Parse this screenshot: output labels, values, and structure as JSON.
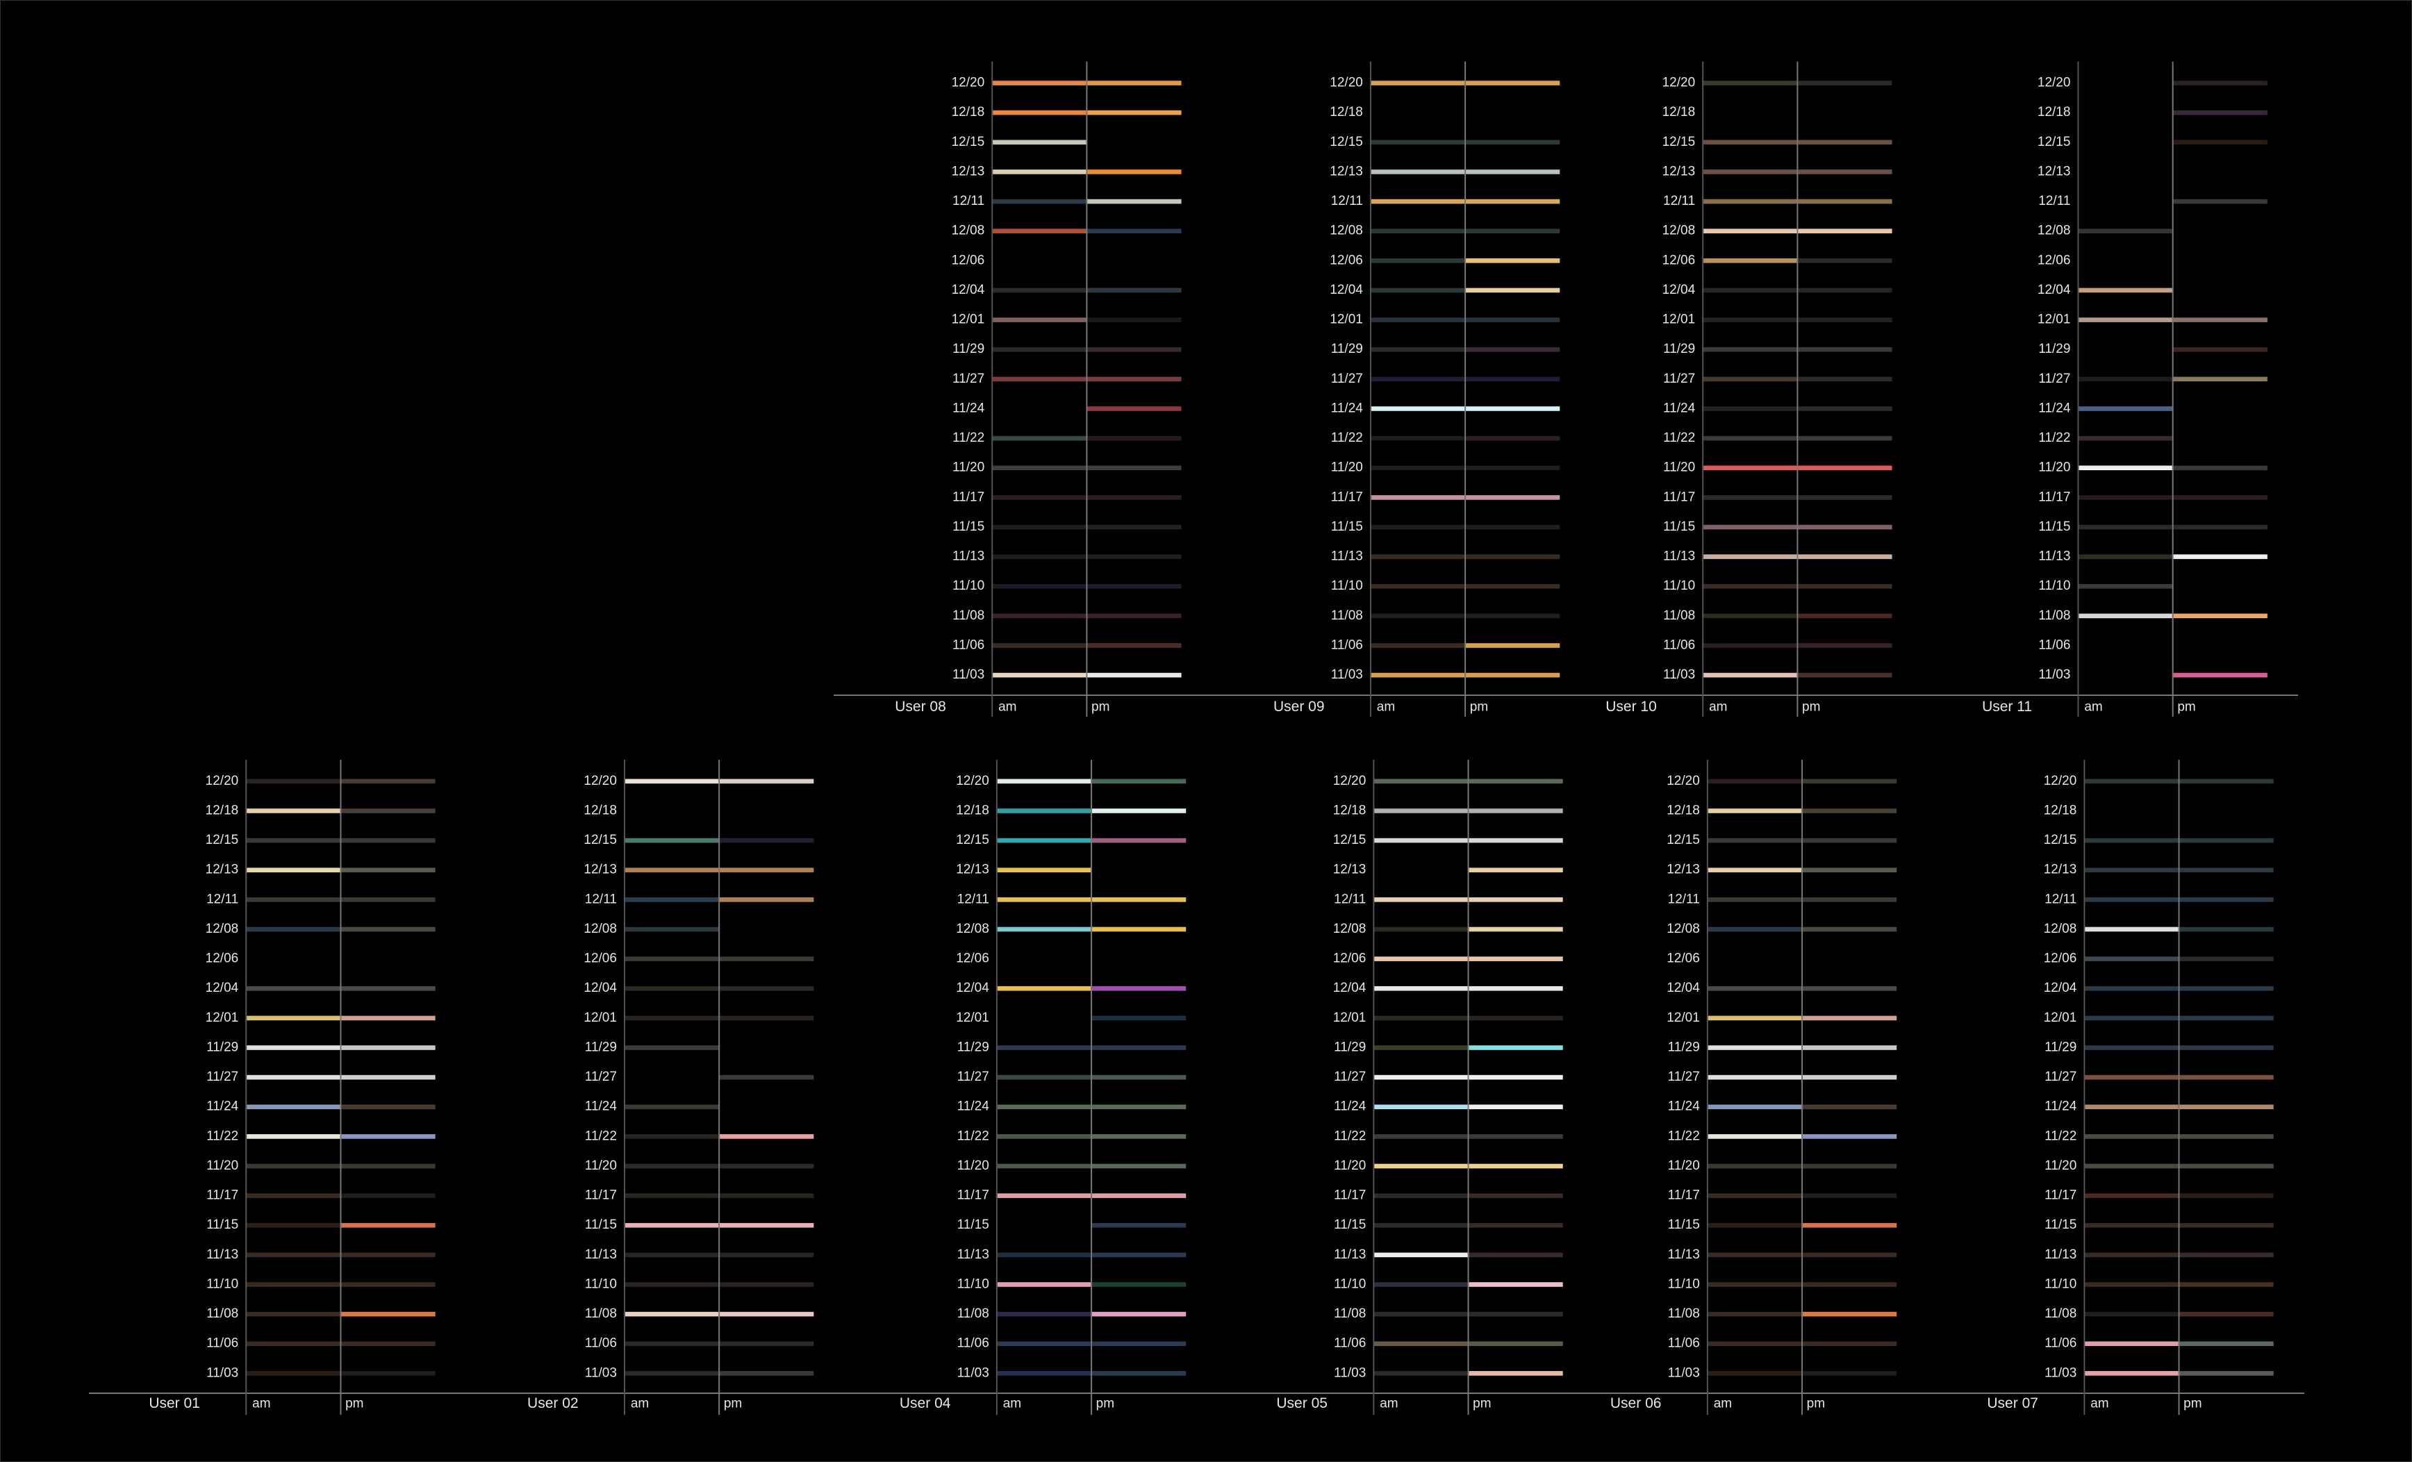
{
  "dates": [
    "12/20",
    "12/18",
    "12/15",
    "12/13",
    "12/11",
    "12/08",
    "12/06",
    "12/04",
    "12/01",
    "11/29",
    "11/27",
    "11/24",
    "11/22",
    "11/20",
    "11/17",
    "11/15",
    "11/13",
    "11/10",
    "11/08",
    "11/06",
    "11/03"
  ],
  "periods": [
    "am",
    "pm"
  ],
  "panels": [
    {
      "user": "User 08",
      "am": [
        "#e8884a",
        "#f0843a",
        "#c8c8b8",
        "#d8d0b0",
        "#2a3a48",
        "#b0503a",
        null,
        "#2a2a28",
        "#806060",
        "#2a2a2a",
        "#7a3a3a",
        null,
        "#3a4a40",
        "#3a4038",
        "#2a1e24",
        "#1e1e1e",
        "#1e1a22",
        "#1e1a24",
        "#3a2228",
        "#3a2a24",
        "#e8d8c0"
      ],
      "pm": [
        "#e8964a",
        "#f0a040",
        null,
        "#f08a30",
        "#c8c8b8",
        "#2a3a50",
        null,
        "#2a3a48",
        "#1a1a1e",
        "#3a2a30",
        "#7a3a40",
        "#8a3a40",
        "#2a1a1a",
        "#3a4038",
        "#2a1e24",
        "#222222",
        "#1e1e22",
        "#1e1e28",
        "#3a2228",
        "#4a2e24",
        "#e8e8e8"
      ]
    },
    {
      "user": "User 09",
      "am": [
        "#d8a050",
        null,
        "#2a3a3a",
        "#b8c0c0",
        "#d8a858",
        "#2a3a3a",
        "#2a3a38",
        "#2a3a38",
        "#2a3040",
        "#2a2a30",
        "#1e2038",
        "#d8f0f0",
        "#1e1a1e",
        "#1e1e1e",
        "#c890a0",
        "#1e1e1e",
        "#3a2a22",
        "#3a2a22",
        "#1e1e1e",
        "#3a2a20",
        "#d8a048"
      ],
      "pm": [
        "#d8a050",
        null,
        "#2a3a3a",
        "#b8c0c0",
        "#d8a858",
        "#2a3a3a",
        "#e8c078",
        "#e8d098",
        "#2a3040",
        "#3a2a38",
        "#1e2038",
        "#d8f0f0",
        "#2e2020",
        "#1e1e1e",
        "#c890a0",
        "#1e1e1e",
        "#3a2a22",
        "#3a2a22",
        "#1e1e1e",
        "#d8a048",
        "#d8a048"
      ]
    },
    {
      "user": "User 10",
      "am": [
        "#3a3a30",
        null,
        "#6a5040",
        "#6a5048",
        "#8a7050",
        "#e8c8b0",
        "#b8905a",
        "#2a2420",
        "#222222",
        "#3a3a38",
        "#4a3a2a",
        "#222222",
        "#3a3a34",
        "#e05858",
        "#2a2a2a",
        "#806070",
        "#c8b0a0",
        "#3a2a28",
        "#2a2a20",
        "#2a1e1e",
        "#e8c0b8"
      ],
      "pm": [
        "#2a2a2a",
        null,
        "#6a5040",
        "#6a5048",
        "#8a7050",
        "#e8c8b0",
        "#2a2a28",
        "#2a2420",
        "#222222",
        "#3a3a38",
        "#2a2a2a",
        "#2a2a2a",
        "#3a3a34",
        "#e05858",
        "#2a2a2a",
        "#806070",
        "#c8b0a0",
        "#3a2a28",
        "#4a2a22",
        "#3a2222",
        "#4a3028"
      ]
    },
    {
      "user": "User 11",
      "am": [
        null,
        null,
        null,
        null,
        null,
        "#3a3430",
        null,
        "#c8a080",
        "#b89a88",
        null,
        "#1e1e1a",
        "#4a6088",
        "#3a2a30",
        "#f0f0f0",
        "#2a1a1a",
        "#2a2a2a",
        "#2a3020",
        "#3a3a3a",
        "#d8d8d8",
        null,
        null
      ],
      "pm": [
        "#2a2028",
        "#3a2838",
        "#2a1a16",
        null,
        "#3a3a34",
        null,
        null,
        null,
        "#8a7068",
        "#3a2424",
        "#8a7a60",
        null,
        null,
        "#3a3a34",
        "#2a1e1e",
        "#2a2a2a",
        "#f0f0f0",
        null,
        "#e8a868",
        null,
        "#d86090"
      ]
    },
    {
      "user": "User 01",
      "am": [
        "#2a2420",
        "#e8d0a8",
        "#3a3a34",
        "#e8d8a8",
        "#3a3a30",
        "#2a3a48",
        null,
        "#4a4a44",
        "#d8c070",
        "#e0e0e0",
        "#e0e0d8",
        "#8898b8",
        "#e8e8d8",
        "#3a3a30",
        "#3a2a20",
        "#2a1e18",
        "#3a2a22",
        "#3a2a22",
        "#3a2a22",
        "#3a2a22",
        "#2a1e18"
      ],
      "pm": [
        "#4a3a30",
        "#4a3e38",
        "#3a3a34",
        "#5a5a50",
        "#3a3a30",
        "#4a4a40",
        null,
        "#4a4a44",
        "#d0a090",
        "#c8c8c8",
        "#d0d0c8",
        "#4a3a30",
        "#8898c0",
        "#3a3a30",
        "#1e1e1e",
        "#d87048",
        "#3a2a22",
        "#3a2a22",
        "#e07840",
        "#3a2a22",
        "#1e1e1e"
      ]
    },
    {
      "user": "User  02",
      "am": [
        "#e8e0d0",
        null,
        "#4a7a70",
        "#b08050",
        "#2a4050",
        "#2a3a40",
        "#3a3a34",
        "#2a2a20",
        "#2a2420",
        "#3a3a38",
        null,
        "#3a3a34",
        "#2a2420",
        "#2a2a2a",
        "#2a2420",
        "#e8b0b0",
        "#2a2420",
        "#2a2420",
        "#e8d0c0",
        "#2a2a2a",
        "#2a2a28"
      ],
      "pm": [
        "#d8d0c0",
        null,
        "#1e2030",
        "#b08050",
        "#b08058",
        null,
        "#3a3a34",
        "#2a2a28",
        "#2a2420",
        null,
        "#3a3a38",
        null,
        "#e8a0a0",
        "#2a2a2a",
        "#2a2420",
        "#e8b0b0",
        "#2a2420",
        "#2a2420",
        "#e8c8c0",
        "#2a2a2a",
        "#3a3a34"
      ]
    },
    {
      "user": "User 04",
      "am": [
        "#e0f0e8",
        "#30a0a8",
        "#30a8b0",
        "#e8c050",
        "#e8c050",
        "#80c8d0",
        null,
        "#e8c050",
        null,
        "#2a3a50",
        "#3a4a40",
        "#5a6a58",
        "#4a5a48",
        "#4a5a48",
        "#e0a0a8",
        null,
        "#1e3040",
        "#e0a0b0",
        "#2a2a50",
        "#2a3a50",
        "#2a3050"
      ],
      "pm": [
        "#4a6a58",
        "#e0f0f0",
        "#a06080",
        null,
        "#e8c050",
        "#e8c050",
        null,
        "#a050b0",
        "#1e3040",
        "#2a3a50",
        "#4a5a50",
        "#5a6a58",
        "#5a6a58",
        "#5a6a58",
        "#e0a0a8",
        "#2a3a50",
        "#2a3a50",
        "#1e4030",
        "#e0a0c0",
        "#2a3a50",
        "#2a3a50"
      ]
    },
    {
      "user": "User 05",
      "am": [
        "#5a6a58",
        "#b0b0b0",
        "#d8d8d8",
        null,
        "#e8d0b0",
        "#2a2a20",
        "#e8c8a8",
        "#e8e8e8",
        "#2a2a20",
        "#3a4020",
        "#f0f0f0",
        "#b0e0f0",
        "#3a3a34",
        "#f0d090",
        "#2a2a28",
        "#2a2a28",
        "#e8f0f0",
        "#2a3040",
        "#2a2a28",
        "#6a5a48",
        "#2a2a28"
      ],
      "pm": [
        "#5a6a58",
        "#b0b0b0",
        "#d8d8d8",
        "#e8d0a0",
        "#e8d0b0",
        "#e8d0a8",
        "#e8c8a8",
        "#e8e8e8",
        "#2a2420",
        "#80e0e0",
        "#f0f0f0",
        "#f0f0f0",
        "#3a3a34",
        "#f0d090",
        "#3a2a28",
        "#3a2a28",
        "#3a2a28",
        "#e8c0c8",
        "#2a2a28",
        "#5a5a48",
        "#e8b8a8"
      ]
    },
    {
      "user": "User 06",
      "am": [
        "#2a2020",
        "#e8d0a0",
        "#3a3a34",
        "#e8d0a8",
        "#3a3a30",
        "#2a3a48",
        null,
        "#4a4a44",
        "#d8c070",
        "#e0e0e0",
        "#e0e0d8",
        "#8898b8",
        "#e8e8d8",
        "#3a3a30",
        "#3a2a20",
        "#2a1e18",
        "#3a2a22",
        "#3a2a22",
        "#3a2a22",
        "#3a2a22",
        "#2a1e18"
      ],
      "pm": [
        "#3a3a30",
        "#4a4034",
        "#3a3a34",
        "#5a5a4a",
        "#3a3a30",
        "#4a4a40",
        null,
        "#4a4a44",
        "#d0a090",
        "#c8c8c8",
        "#d0d0c8",
        "#4a3a30",
        "#8898c0",
        "#3a3a30",
        "#1e1e1e",
        "#d87048",
        "#3a2a22",
        "#3a2a22",
        "#e07840",
        "#3a2a22",
        "#1e1e1e"
      ]
    },
    {
      "user": "User 07",
      "am": [
        "#2a3a3a",
        null,
        "#2a3a40",
        "#2a3a40",
        "#2a3a48",
        "#e0e0e0",
        "#3a4a50",
        "#2a3a48",
        "#2a3a48",
        "#2a3a48",
        "#7a5040",
        "#b08a70",
        "#4a4a40",
        "#4a4a40",
        "#4a2a24",
        "#3a2a24",
        "#3a2a24",
        "#3a2a20",
        "#1e1e1a",
        "#e0a0a8",
        "#e8a0a8"
      ],
      "pm": [
        "#2a3a3a",
        null,
        "#2a3a40",
        "#2a3a40",
        "#2a3a48",
        "#2a3a40",
        "#2a2a30",
        "#2a3a48",
        "#2a3a48",
        "#2a3a48",
        "#7a5040",
        "#b08a70",
        "#4a4a40",
        "#4a4a40",
        "#2a1e1a",
        "#3a2a24",
        "#3a2a28",
        "#4a2e22",
        "#4a2a22",
        "#5a6a60",
        "#5a5a5a"
      ]
    }
  ]
}
